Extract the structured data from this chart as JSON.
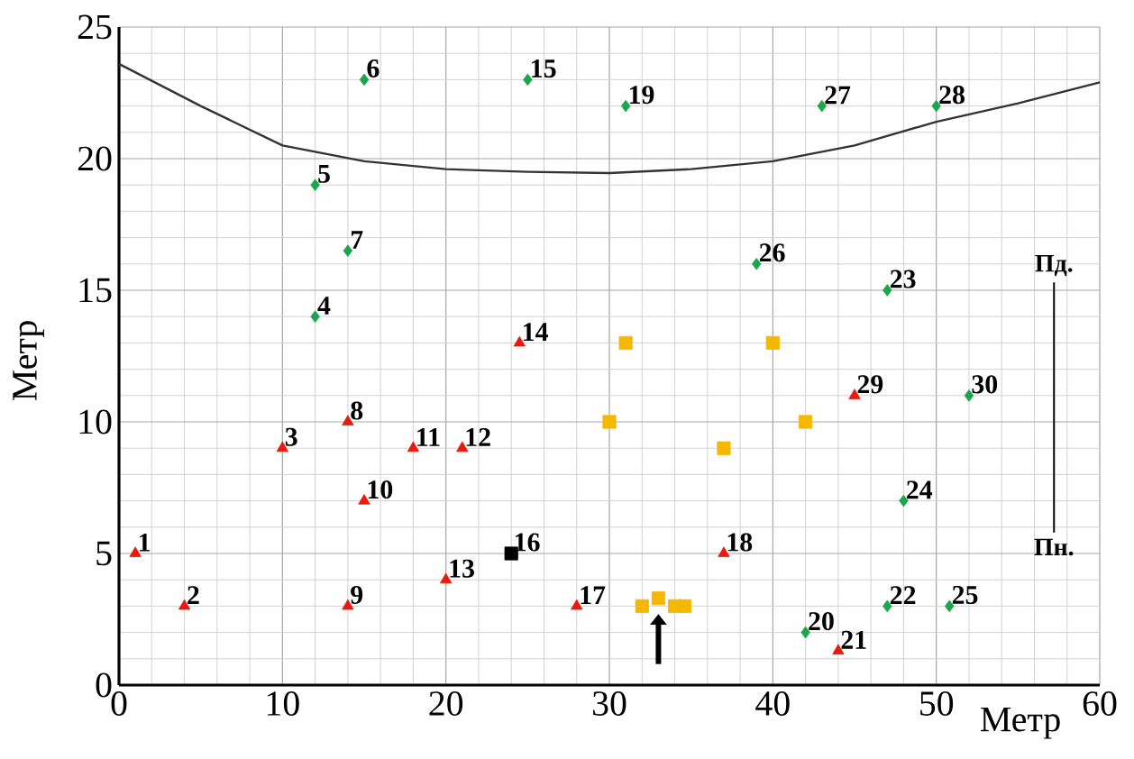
{
  "chart_data": {
    "type": "scatter",
    "xlabel": "Метр",
    "ylabel": "Метр",
    "xlim": [
      0,
      60
    ],
    "ylim": [
      0,
      25
    ],
    "xticks": [
      0,
      10,
      20,
      30,
      40,
      50,
      60
    ],
    "yticks": [
      0,
      5,
      10,
      15,
      20,
      25
    ],
    "grid": true,
    "series": [
      {
        "type": "line",
        "color": "#333333",
        "marker": "none",
        "x": [
          0,
          5,
          10,
          15,
          20,
          25,
          30,
          35,
          40,
          45,
          50,
          55,
          60
        ],
        "values": [
          23.6,
          22,
          20.5,
          19.9,
          19.6,
          19.5,
          19.45,
          19.6,
          19.9,
          20.5,
          21.4,
          22.1,
          22.9
        ]
      },
      {
        "color": "#e8190f",
        "marker": "triangle",
        "x": [
          1,
          4,
          10,
          14,
          14,
          15,
          18,
          21,
          20,
          24.5,
          28,
          37,
          44,
          45
        ],
        "values": [
          5,
          3,
          9,
          10,
          3,
          7,
          9,
          9,
          4,
          13,
          3,
          5,
          1.3,
          11
        ]
      },
      {
        "color": "#1aa64a",
        "marker": "diamond",
        "x": [
          12,
          12,
          15,
          14,
          25,
          31,
          42,
          47,
          47,
          48,
          50.8,
          39,
          43,
          50,
          52
        ],
        "values": [
          14,
          19,
          23,
          16.5,
          23,
          22,
          2,
          3,
          15,
          7,
          3,
          16,
          22,
          22,
          11
        ]
      },
      {
        "color": "#f5b800",
        "marker": "square",
        "x": [
          31,
          30,
          40,
          37,
          42,
          32,
          33,
          34,
          34.6
        ],
        "values": [
          13,
          10,
          13,
          9,
          10,
          3,
          3.3,
          3,
          3
        ]
      },
      {
        "color": "#000000",
        "marker": "square",
        "x": [
          24
        ],
        "values": [
          5
        ]
      }
    ],
    "annotations": [
      {
        "text": "1",
        "x": 1,
        "y": 5
      },
      {
        "text": "2",
        "x": 4,
        "y": 3
      },
      {
        "text": "3",
        "x": 10,
        "y": 9
      },
      {
        "text": "4",
        "x": 12,
        "y": 14
      },
      {
        "text": "5",
        "x": 12,
        "y": 19
      },
      {
        "text": "6",
        "x": 15,
        "y": 23
      },
      {
        "text": "7",
        "x": 14,
        "y": 16.5
      },
      {
        "text": "8",
        "x": 14,
        "y": 10
      },
      {
        "text": "9",
        "x": 14,
        "y": 3
      },
      {
        "text": "10",
        "x": 15,
        "y": 7
      },
      {
        "text": "11",
        "x": 18,
        "y": 9
      },
      {
        "text": "12",
        "x": 21,
        "y": 9
      },
      {
        "text": "13",
        "x": 20,
        "y": 4
      },
      {
        "text": "14",
        "x": 24.5,
        "y": 13
      },
      {
        "text": "15",
        "x": 25,
        "y": 23
      },
      {
        "text": "16",
        "x": 24,
        "y": 5
      },
      {
        "text": "17",
        "x": 28,
        "y": 3
      },
      {
        "text": "18",
        "x": 37,
        "y": 5
      },
      {
        "text": "19",
        "x": 31,
        "y": 22
      },
      {
        "text": "20",
        "x": 42,
        "y": 2
      },
      {
        "text": "21",
        "x": 44,
        "y": 1.3
      },
      {
        "text": "22",
        "x": 47,
        "y": 3
      },
      {
        "text": "23",
        "x": 47,
        "y": 15
      },
      {
        "text": "24",
        "x": 48,
        "y": 7
      },
      {
        "text": "25",
        "x": 50.8,
        "y": 3
      },
      {
        "text": "26",
        "x": 39,
        "y": 16
      },
      {
        "text": "27",
        "x": 43,
        "y": 22
      },
      {
        "text": "28",
        "x": 50,
        "y": 22
      },
      {
        "text": "29",
        "x": 45,
        "y": 11
      },
      {
        "text": "30",
        "x": 52,
        "y": 11
      },
      "Пд.",
      "Пн."
    ]
  }
}
